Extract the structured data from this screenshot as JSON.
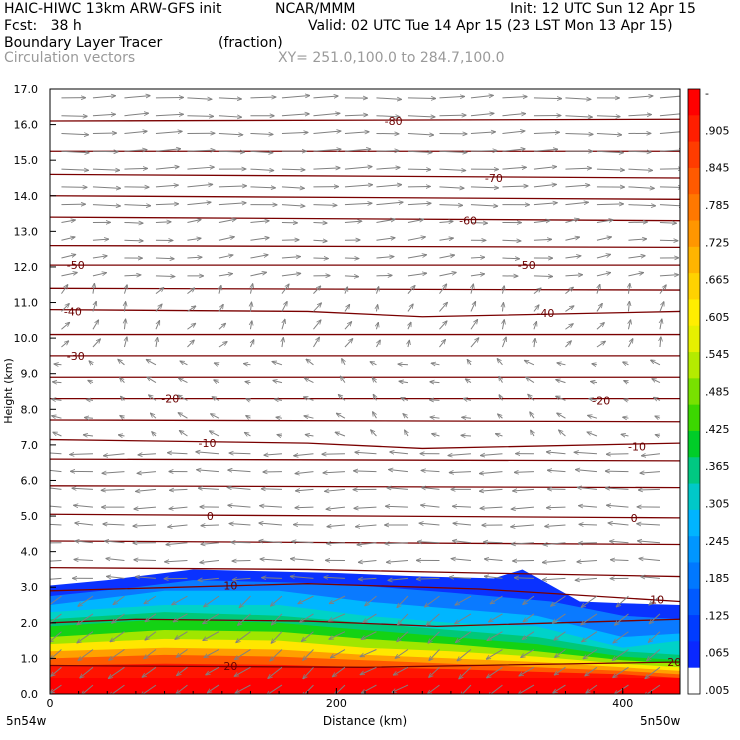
{
  "header": {
    "model": "HAIC-HIWC 13km ARW-GFS init",
    "center": "NCAR/MMM",
    "init": "Init: 12 UTC Sun 12 Apr 15",
    "fcst": "Fcst:   38 h",
    "valid": "Valid: 02 UTC Tue 14 Apr 15 (23 LST Mon 13 Apr 15)",
    "field": "Boundary Layer Tracer",
    "units": "(fraction)",
    "vectors": "Circulation vectors",
    "xy": "XY= 251.0,100.0 to 284.7,100.0"
  },
  "chart_data": {
    "type": "heatmap",
    "title": "Boundary Layer Tracer",
    "xlabel": "Distance (km)",
    "ylabel": "Height (km)",
    "xlim": [
      0,
      440
    ],
    "ylim": [
      0,
      17
    ],
    "x_ticks": [
      0,
      200,
      400
    ],
    "y_ticks": [
      "0.0",
      "1.0",
      "2.0",
      "3.0",
      "4.0",
      "5.0",
      "6.0",
      "7.0",
      "8.0",
      "9.0",
      "10.0",
      "11.0",
      "12.0",
      "13.0",
      "14.0",
      "15.0",
      "16.0",
      "17.0"
    ],
    "x_endpoints": {
      "left": "5n54w",
      "right": "5n50w"
    },
    "tracer_layers": [
      {
        "x": [
          0,
          40,
          100,
          200,
          260,
          310,
          330,
          370,
          400,
          440
        ],
        "top": [
          3.05,
          3.2,
          3.5,
          3.4,
          3.3,
          3.25,
          3.5,
          2.6,
          2.55,
          2.5
        ],
        "color": "#0a32ff"
      },
      {
        "x": [
          0,
          60,
          100,
          200,
          280,
          350,
          400,
          440
        ],
        "top": [
          2.75,
          3.0,
          3.2,
          3.1,
          2.85,
          2.6,
          2.2,
          2.1
        ],
        "color": "#0a7aff"
      },
      {
        "x": [
          0,
          80,
          160,
          220,
          280,
          340,
          400,
          440
        ],
        "top": [
          2.5,
          2.9,
          2.9,
          2.6,
          2.4,
          2.2,
          1.6,
          1.7
        ],
        "color": "#00b6ff"
      },
      {
        "x": [
          0,
          80,
          160,
          220,
          280,
          340,
          400,
          440
        ],
        "top": [
          2.3,
          2.5,
          2.5,
          2.2,
          2.0,
          1.9,
          1.3,
          1.5
        ],
        "color": "#00d2c8"
      },
      {
        "x": [
          0,
          80,
          160,
          220,
          280,
          340,
          400,
          440
        ],
        "top": [
          2.1,
          2.3,
          2.2,
          2.0,
          1.8,
          1.6,
          1.2,
          1.1
        ],
        "color": "#00c878"
      },
      {
        "x": [
          0,
          80,
          160,
          220,
          280,
          340,
          400,
          440
        ],
        "top": [
          1.9,
          2.1,
          2.0,
          1.8,
          1.6,
          1.4,
          1.05,
          0.95
        ],
        "color": "#14d214"
      },
      {
        "x": [
          0,
          80,
          160,
          220,
          280,
          340,
          400,
          440
        ],
        "top": [
          1.6,
          1.8,
          1.75,
          1.55,
          1.4,
          1.2,
          0.95,
          0.85
        ],
        "color": "#a0e600"
      },
      {
        "x": [
          0,
          80,
          160,
          220,
          280,
          340,
          400,
          440
        ],
        "top": [
          1.4,
          1.55,
          1.5,
          1.3,
          1.2,
          1.05,
          0.85,
          0.75
        ],
        "color": "#ffe600"
      },
      {
        "x": [
          0,
          80,
          160,
          220,
          280,
          340,
          400,
          440
        ],
        "top": [
          1.2,
          1.3,
          1.25,
          1.1,
          1.0,
          0.9,
          0.75,
          0.65
        ],
        "color": "#ffa000"
      },
      {
        "x": [
          0,
          80,
          160,
          220,
          280,
          340,
          400,
          440
        ],
        "top": [
          1.0,
          1.1,
          1.05,
          0.95,
          0.85,
          0.75,
          0.65,
          0.55
        ],
        "color": "#ff5a00"
      },
      {
        "x": [
          0,
          80,
          160,
          220,
          280,
          340,
          400,
          440
        ],
        "top": [
          0.8,
          0.85,
          0.82,
          0.75,
          0.7,
          0.62,
          0.55,
          0.45
        ],
        "color": "#ff1400"
      }
    ],
    "temperature_contours": [
      {
        "x": [
          0,
          440
        ],
        "y": [
          16.1,
          16.15
        ]
      },
      {
        "x": [
          0,
          440
        ],
        "y": [
          15.25,
          15.25
        ]
      },
      {
        "x": [
          0,
          440
        ],
        "y": [
          14.6,
          14.5
        ]
      },
      {
        "x": [
          0,
          440
        ],
        "y": [
          14.0,
          13.9
        ]
      },
      {
        "x": [
          0,
          440
        ],
        "y": [
          13.4,
          13.3
        ]
      },
      {
        "x": [
          0,
          440
        ],
        "y": [
          12.6,
          12.55
        ]
      },
      {
        "x": [
          0,
          440
        ],
        "y": [
          12.05,
          12.05
        ]
      },
      {
        "x": [
          0,
          440
        ],
        "y": [
          11.4,
          11.35
        ]
      },
      {
        "x": [
          0,
          180,
          260,
          440
        ],
        "y": [
          10.8,
          10.75,
          10.6,
          10.75
        ]
      },
      {
        "x": [
          0,
          440
        ],
        "y": [
          10.1,
          10.1
        ]
      },
      {
        "x": [
          0,
          440
        ],
        "y": [
          9.5,
          9.5
        ]
      },
      {
        "x": [
          0,
          440
        ],
        "y": [
          8.9,
          8.9
        ]
      },
      {
        "x": [
          0,
          440
        ],
        "y": [
          8.3,
          8.3
        ]
      },
      {
        "x": [
          0,
          440
        ],
        "y": [
          7.7,
          7.65
        ]
      },
      {
        "x": [
          0,
          180,
          260,
          440
        ],
        "y": [
          7.15,
          7.05,
          6.9,
          7.05
        ]
      },
      {
        "x": [
          0,
          440
        ],
        "y": [
          6.6,
          6.55
        ]
      },
      {
        "x": [
          0,
          440
        ],
        "y": [
          5.85,
          5.8
        ]
      },
      {
        "x": [
          0,
          440
        ],
        "y": [
          5.05,
          4.95
        ]
      },
      {
        "x": [
          0,
          440
        ],
        "y": [
          4.3,
          4.2
        ]
      },
      {
        "x": [
          0,
          180,
          300,
          440
        ],
        "y": [
          3.55,
          3.5,
          3.4,
          3.3
        ]
      },
      {
        "x": [
          0,
          180,
          300,
          440
        ],
        "y": [
          2.9,
          3.1,
          2.95,
          2.6
        ]
      },
      {
        "x": [
          0,
          60,
          180,
          270,
          440
        ],
        "y": [
          2.0,
          2.1,
          2.05,
          1.9,
          2.1
        ]
      },
      {
        "x": [
          0,
          220,
          440
        ],
        "y": [
          0.8,
          0.75,
          0.9
        ]
      }
    ],
    "contour_labels": [
      {
        "text": "-80",
        "x": 240,
        "y": 16.1
      },
      {
        "text": "-70",
        "x": 310,
        "y": 14.5
      },
      {
        "text": "-60",
        "x": 292,
        "y": 13.3
      },
      {
        "text": "-50",
        "x": 18,
        "y": 12.05
      },
      {
        "text": "-50",
        "x": 333,
        "y": 12.05
      },
      {
        "text": "-40",
        "x": 16,
        "y": 10.75
      },
      {
        "text": "-40",
        "x": 346,
        "y": 10.7
      },
      {
        "text": "-30",
        "x": 18,
        "y": 9.5
      },
      {
        "text": "-20",
        "x": 84,
        "y": 8.3
      },
      {
        "text": "-20",
        "x": 385,
        "y": 8.25
      },
      {
        "text": "-10",
        "x": 110,
        "y": 7.05
      },
      {
        "text": "-10",
        "x": 410,
        "y": 6.95
      },
      {
        "text": "0",
        "x": 112,
        "y": 5.0
      },
      {
        "text": "0",
        "x": 408,
        "y": 4.95
      },
      {
        "text": "10",
        "x": 126,
        "y": 3.05
      },
      {
        "text": "10",
        "x": 424,
        "y": 2.65
      },
      {
        "text": "20",
        "x": 126,
        "y": 0.78
      },
      {
        "text": "20",
        "x": 436,
        "y": 0.9
      }
    ],
    "wind_field": {
      "x_step": 22,
      "y_step": 0.5,
      "regimes": [
        {
          "z_min": 13.5,
          "z_max": 17.0,
          "u": 1.0,
          "w": 0.02
        },
        {
          "z_min": 11.5,
          "z_max": 13.5,
          "u": 0.6,
          "w": 0.05
        },
        {
          "z_min": 9.5,
          "z_max": 11.5,
          "u": 0.15,
          "w": 0.25
        },
        {
          "z_min": 7.0,
          "z_max": 9.5,
          "u": -0.2,
          "w": 0.1
        },
        {
          "z_min": 3.0,
          "z_max": 7.0,
          "u": -0.8,
          "w": 0.0
        },
        {
          "z_min": 0.0,
          "z_max": 3.0,
          "u": -0.5,
          "w": -0.35
        }
      ]
    },
    "colorbar": {
      "labels": [
        "-",
        ".905",
        ".845",
        ".785",
        ".725",
        ".665",
        ".605",
        ".545",
        ".485",
        ".425",
        ".365",
        ".305",
        ".245",
        ".185",
        ".125",
        ".065",
        ".005"
      ],
      "colors": [
        "#ff0000",
        "#ff1e00",
        "#ff3c00",
        "#ff5a00",
        "#ff7800",
        "#ff9600",
        "#ffb400",
        "#ffd200",
        "#ffee00",
        "#e6f000",
        "#b4eb00",
        "#78e100",
        "#3cd700",
        "#00cd28",
        "#00c882",
        "#00c8c8",
        "#00b4ff",
        "#0096ff",
        "#0078ff",
        "#005aff",
        "#003cff",
        "#0a28ff",
        "#ffffff"
      ]
    }
  }
}
